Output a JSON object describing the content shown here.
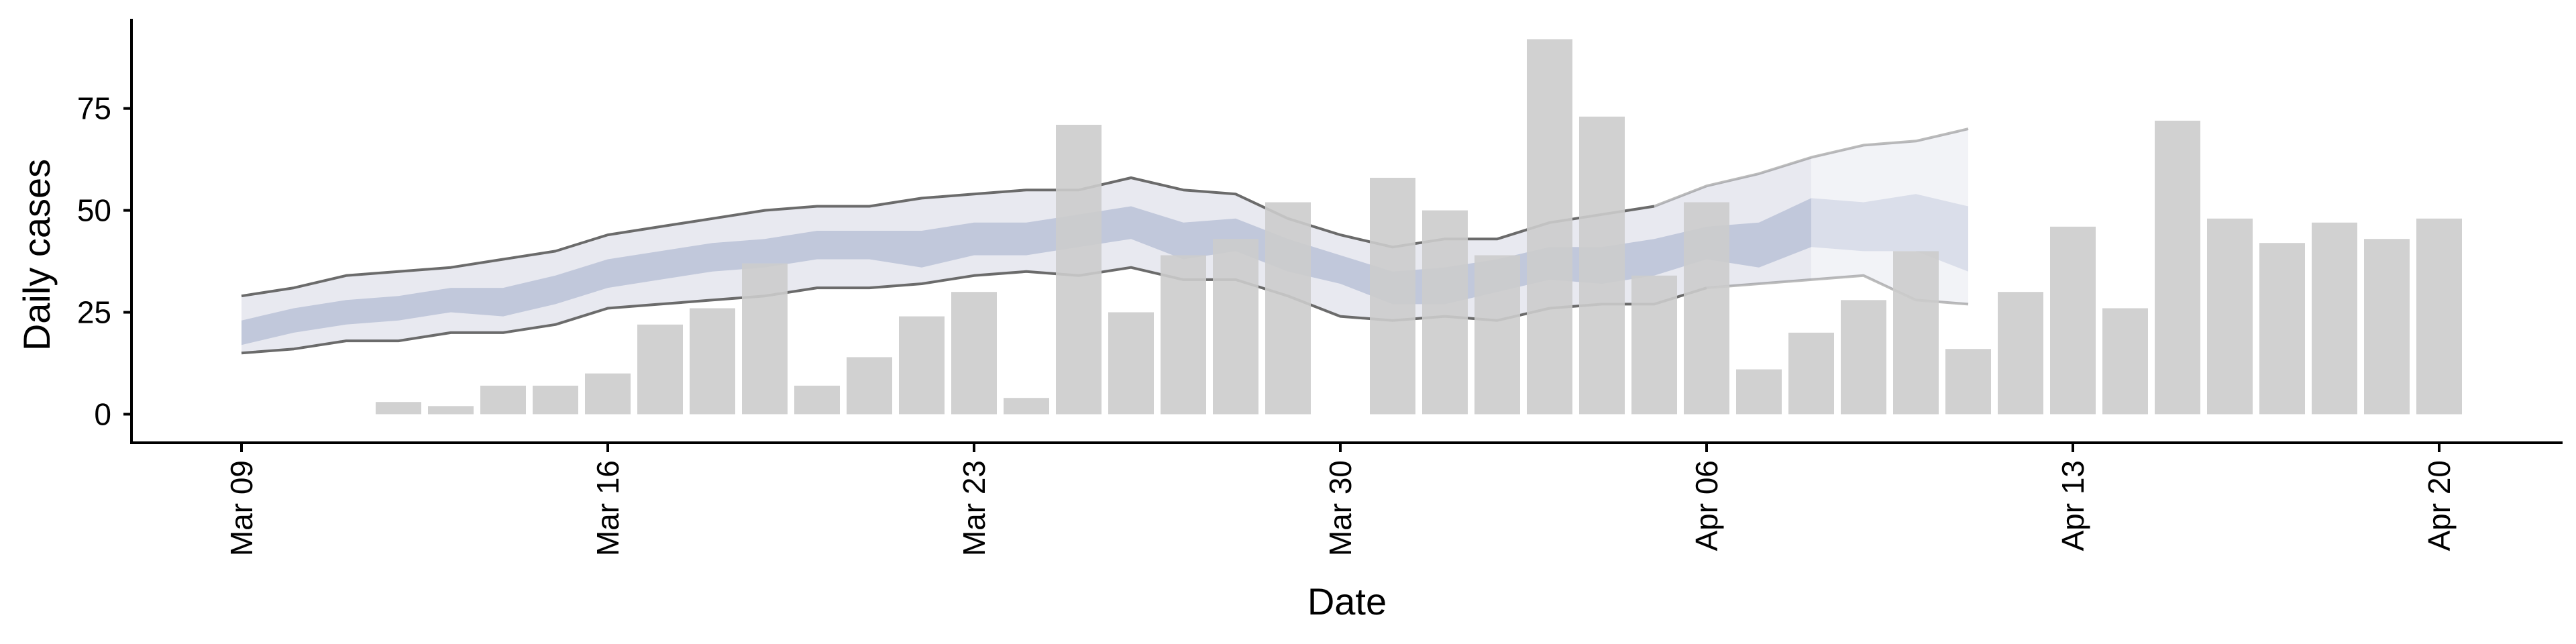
{
  "chart_data": {
    "type": "bar",
    "title": "",
    "xlabel": "Date",
    "ylabel": "Daily cases",
    "ylim": [
      -7,
      97
    ],
    "y_ticks": [
      0,
      25,
      50,
      75
    ],
    "x_axis_start_date": "2020-03-06",
    "x_ticks": [
      {
        "date": "2020-03-09",
        "label": "Mar 09"
      },
      {
        "date": "2020-03-16",
        "label": "Mar 16"
      },
      {
        "date": "2020-03-23",
        "label": "Mar 23"
      },
      {
        "date": "2020-03-30",
        "label": "Mar 30"
      },
      {
        "date": "2020-04-06",
        "label": "Apr 06"
      },
      {
        "date": "2020-04-13",
        "label": "Apr 13"
      },
      {
        "date": "2020-04-20",
        "label": "Apr 20"
      }
    ],
    "grid": false,
    "legend": "none",
    "colors": {
      "bars": "#cccccc",
      "inner_band": "#b7bfd6",
      "outer_band": "#e8e9f0",
      "band_lines": "#6b6b6b",
      "axis": "#000000"
    },
    "series": [
      {
        "type": "bar",
        "dates": [
          "2020-03-09",
          "2020-03-10",
          "2020-03-11",
          "2020-03-12",
          "2020-03-13",
          "2020-03-14",
          "2020-03-15",
          "2020-03-16",
          "2020-03-17",
          "2020-03-18",
          "2020-03-19",
          "2020-03-20",
          "2020-03-21",
          "2020-03-22",
          "2020-03-23",
          "2020-03-24",
          "2020-03-25",
          "2020-03-26",
          "2020-03-27",
          "2020-03-28",
          "2020-03-29",
          "2020-03-30",
          "2020-03-31",
          "2020-04-01",
          "2020-04-02",
          "2020-04-03",
          "2020-04-04",
          "2020-04-05",
          "2020-04-06",
          "2020-04-07",
          "2020-04-08",
          "2020-04-09",
          "2020-04-10",
          "2020-04-11",
          "2020-04-12",
          "2020-04-13",
          "2020-04-14",
          "2020-04-15",
          "2020-04-16",
          "2020-04-17",
          "2020-04-18",
          "2020-04-19",
          "2020-04-20"
        ],
        "values": [
          0,
          0,
          0,
          3,
          2,
          7,
          7,
          10,
          22,
          26,
          37,
          7,
          14,
          24,
          30,
          4,
          71,
          25,
          39,
          43,
          52,
          0,
          58,
          50,
          39,
          92,
          73,
          34,
          52,
          11,
          20,
          28,
          40,
          16,
          30,
          46,
          26,
          72,
          48,
          42,
          47,
          43,
          48
        ]
      },
      {
        "type": "band",
        "dates": [
          "2020-03-09",
          "2020-03-10",
          "2020-03-11",
          "2020-03-12",
          "2020-03-13",
          "2020-03-14",
          "2020-03-15",
          "2020-03-16",
          "2020-03-17",
          "2020-03-18",
          "2020-03-19",
          "2020-03-20",
          "2020-03-21",
          "2020-03-22",
          "2020-03-23",
          "2020-03-24",
          "2020-03-25",
          "2020-03-26",
          "2020-03-27",
          "2020-03-28",
          "2020-03-29",
          "2020-03-30",
          "2020-03-31",
          "2020-04-01",
          "2020-04-02",
          "2020-04-03",
          "2020-04-04",
          "2020-04-05",
          "2020-04-06",
          "2020-04-07",
          "2020-04-08",
          "2020-04-09",
          "2020-04-10",
          "2020-04-11"
        ],
        "outer_upper": [
          29,
          31,
          34,
          35,
          36,
          38,
          40,
          44,
          46,
          48,
          50,
          51,
          51,
          53,
          54,
          55,
          55,
          58,
          55,
          54,
          48,
          44,
          41,
          43,
          43,
          47,
          49,
          51,
          56,
          59,
          63,
          66,
          67,
          70
        ],
        "outer_lower": [
          15,
          16,
          18,
          18,
          20,
          20,
          22,
          26,
          27,
          28,
          29,
          31,
          31,
          32,
          34,
          35,
          34,
          36,
          33,
          33,
          29,
          24,
          23,
          24,
          23,
          26,
          27,
          27,
          31,
          32,
          33,
          34,
          28,
          27
        ],
        "inner_upper": [
          23,
          26,
          28,
          29,
          31,
          31,
          34,
          38,
          40,
          42,
          43,
          45,
          45,
          45,
          47,
          47,
          49,
          51,
          47,
          48,
          43,
          39,
          35,
          36,
          38,
          41,
          41,
          43,
          46,
          47,
          53,
          52,
          54,
          51
        ],
        "inner_lower": [
          17,
          20,
          22,
          23,
          25,
          24,
          27,
          31,
          33,
          35,
          36,
          38,
          38,
          36,
          39,
          39,
          41,
          43,
          38,
          40,
          35,
          32,
          27,
          27,
          30,
          33,
          32,
          34,
          38,
          36,
          41,
          40,
          40,
          35
        ]
      }
    ]
  }
}
